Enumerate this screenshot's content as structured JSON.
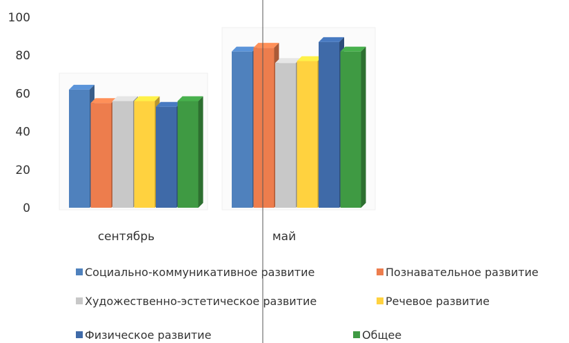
{
  "chart_data": {
    "type": "bar",
    "categories": [
      "сентябрь",
      "май"
    ],
    "series": [
      {
        "name": "Социально-коммуникативное развитие",
        "values": [
          62,
          82
        ],
        "color": "#4f81bd"
      },
      {
        "name": "Познавательное развитие",
        "values": [
          55,
          84
        ],
        "color": "#ed7d4d"
      },
      {
        "name": "Художественно-эстетическое развитие",
        "values": [
          56,
          76
        ],
        "color": "#c8c8c8"
      },
      {
        "name": "Речевое развитие",
        "values": [
          56,
          77
        ],
        "color": "#ffd23f"
      },
      {
        "name": "Физическое развитие",
        "values": [
          53,
          87
        ],
        "color": "#3f6aa8"
      },
      {
        "name": "Общее",
        "values": [
          56,
          82
        ],
        "color": "#3f9a43"
      }
    ],
    "ylim": [
      0,
      100
    ],
    "yticks": [
      0,
      20,
      40,
      60,
      80,
      100
    ],
    "legend": "bottom",
    "grid": false,
    "style": "3d-column"
  }
}
